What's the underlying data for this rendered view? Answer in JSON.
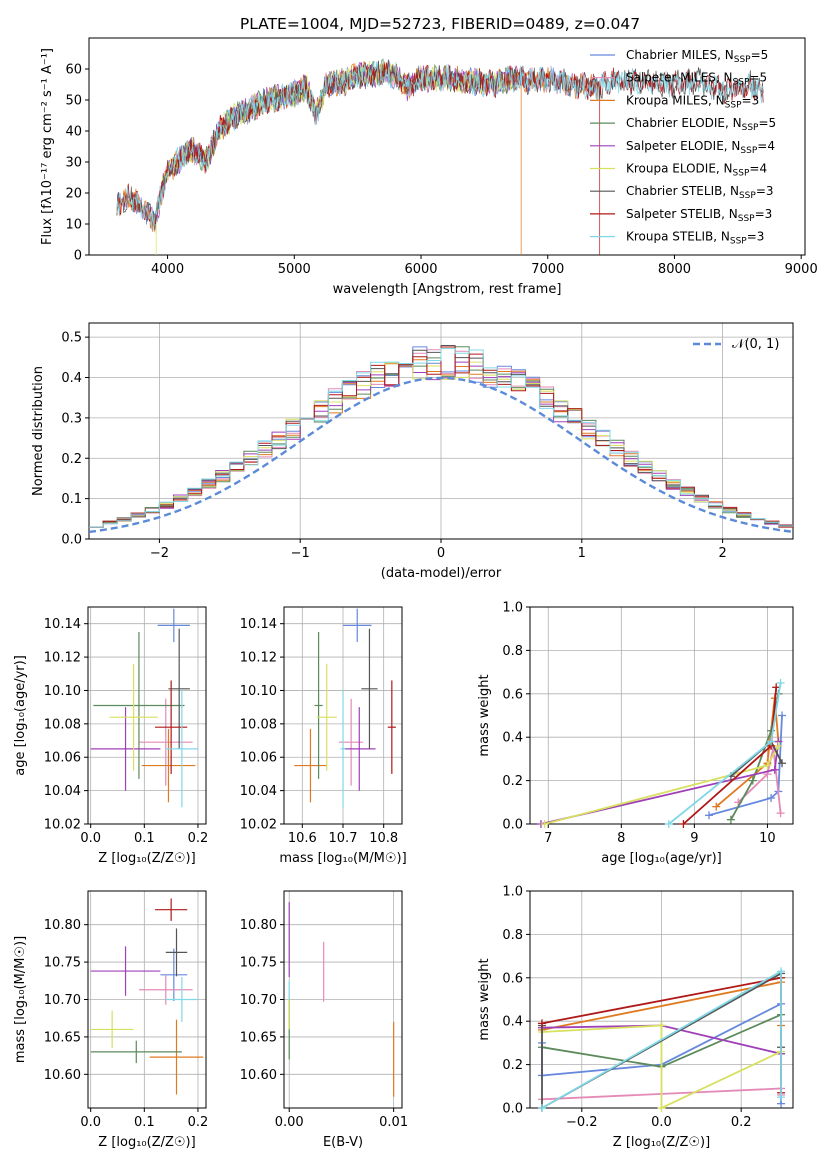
{
  "figure_title": "PLATE=1004, MJD=52723, FIBERID=0489, z=0.047",
  "colors": {
    "Chabrier MILES": "#6688dd",
    "Salpeter MILES": "#e48ab8",
    "Kroupa MILES": "#e07a20",
    "Chabrier ELODIE": "#5c8a5c",
    "Salpeter ELODIE": "#a040b8",
    "Kroupa ELODIE": "#d8e060",
    "Chabrier STELIB": "#555555",
    "Salpeter STELIB": "#b01818",
    "Kroupa STELIB": "#80d8e8",
    "normal_curve": "#5b8bd8"
  },
  "chart_data": [
    {
      "id": "spectrum",
      "type": "line",
      "title": "PLATE=1004, MJD=52723, FIBERID=0489, z=0.047",
      "xlabel": "wavelength [Angstrom, rest frame]",
      "ylabel": "Flux [fλ10⁻¹⁷ erg cm⁻² s⁻¹ A⁻¹]",
      "xlim": [
        3380,
        9030
      ],
      "ylim": [
        0,
        70
      ],
      "xticks": [
        4000,
        5000,
        6000,
        7000,
        8000,
        9000
      ],
      "yticks": [
        0,
        10,
        20,
        30,
        40,
        50,
        60
      ],
      "legend_position": "upper right",
      "legend": [
        {
          "label": "Chabrier MILES, N",
          "sub": "SSP",
          "suffix": "=5",
          "series": "Chabrier MILES"
        },
        {
          "label": "Salpeter MILES, N",
          "sub": "SSP",
          "suffix": "=5",
          "series": "Salpeter MILES"
        },
        {
          "label": "Kroupa MILES, N",
          "sub": "SSP",
          "suffix": "=3",
          "series": "Kroupa MILES"
        },
        {
          "label": "Chabrier ELODIE, N",
          "sub": "SSP",
          "suffix": "=5",
          "series": "Chabrier ELODIE"
        },
        {
          "label": "Salpeter ELODIE, N",
          "sub": "SSP",
          "suffix": "=4",
          "series": "Salpeter ELODIE"
        },
        {
          "label": "Kroupa ELODIE, N",
          "sub": "SSP",
          "suffix": "=4",
          "series": "Kroupa ELODIE"
        },
        {
          "label": "Chabrier STELIB, N",
          "sub": "SSP",
          "suffix": "=3",
          "series": "Chabrier STELIB"
        },
        {
          "label": "Salpeter STELIB, N",
          "sub": "SSP",
          "suffix": "=3",
          "series": "Salpeter STELIB"
        },
        {
          "label": "Kroupa STELIB, N",
          "sub": "SSP",
          "suffix": "=3",
          "series": "Kroupa STELIB"
        }
      ],
      "continuum": [
        [
          3600,
          16
        ],
        [
          3700,
          19
        ],
        [
          3800,
          15
        ],
        [
          3900,
          11
        ],
        [
          3950,
          20
        ],
        [
          4000,
          27
        ],
        [
          4100,
          31
        ],
        [
          4200,
          34
        ],
        [
          4300,
          30
        ],
        [
          4400,
          40
        ],
        [
          4500,
          44
        ],
        [
          4600,
          46
        ],
        [
          4700,
          48
        ],
        [
          4800,
          50
        ],
        [
          4900,
          51
        ],
        [
          5000,
          52
        ],
        [
          5100,
          54
        ],
        [
          5170,
          45
        ],
        [
          5250,
          55
        ],
        [
          5400,
          56
        ],
        [
          5500,
          58
        ],
        [
          5600,
          58
        ],
        [
          5700,
          59
        ],
        [
          5800,
          58
        ],
        [
          5890,
          54
        ],
        [
          6000,
          57
        ],
        [
          6200,
          57
        ],
        [
          6400,
          56
        ],
        [
          6563,
          55
        ],
        [
          6700,
          57
        ],
        [
          6900,
          56
        ],
        [
          7000,
          57
        ],
        [
          7200,
          55
        ],
        [
          7400,
          54
        ],
        [
          7500,
          56
        ],
        [
          7800,
          56
        ],
        [
          8000,
          55
        ],
        [
          8200,
          56
        ],
        [
          8400,
          53
        ],
        [
          8600,
          55
        ],
        [
          8700,
          53
        ]
      ],
      "drops": [
        {
          "series": "Kroupa ELODIE",
          "x": 3910
        },
        {
          "series": "Kroupa MILES",
          "x": 6790
        },
        {
          "series": "Salpeter STELIB",
          "x": 7410
        }
      ],
      "series_extent": {
        "MILES": [
          3600,
          7410
        ],
        "ELODIE": [
          3900,
          6790
        ],
        "STELIB": [
          3600,
          8700
        ]
      }
    },
    {
      "id": "residuals",
      "type": "step",
      "xlabel": "(data-model)/error",
      "ylabel": "Normed distribution",
      "xlim": [
        -2.5,
        2.5
      ],
      "ylim": [
        0,
        0.535
      ],
      "xticks": [
        -2,
        -1,
        0,
        1,
        2
      ],
      "yticks": [
        0.0,
        0.1,
        0.2,
        0.3,
        0.4,
        0.5
      ],
      "grid": true,
      "legend_position": "upper right",
      "legend_label": "𝒩(0, 1)",
      "bin_width": 0.1
    },
    {
      "id": "age_vs_Z",
      "type": "errorbar",
      "xlabel": "Z [log₁₀(Z/Z☉)]",
      "ylabel": "age  [log₁₀(age/yr)]",
      "xlim": [
        -0.005,
        0.215
      ],
      "ylim": [
        10.02,
        10.15
      ],
      "xticks": [
        0.0,
        0.1,
        0.2
      ],
      "yticks": [
        10.02,
        10.04,
        10.06,
        10.08,
        10.1,
        10.12,
        10.14
      ],
      "grid": true,
      "points": [
        {
          "series": "Chabrier MILES",
          "x": 0.155,
          "xerr": 0.03,
          "y": 10.139,
          "yerr": 0.01
        },
        {
          "series": "Salpeter MILES",
          "x": 0.14,
          "xerr": 0.05,
          "y": 10.069,
          "yerr": 0.026
        },
        {
          "series": "Kroupa MILES",
          "x": 0.145,
          "xerr": 0.05,
          "y": 10.055,
          "yerr": 0.022
        },
        {
          "series": "Chabrier ELODIE",
          "x": 0.09,
          "xerr": 0.085,
          "y": 10.091,
          "yerr": 0.044
        },
        {
          "series": "Salpeter ELODIE",
          "x": 0.065,
          "xerr": 0.065,
          "y": 10.065,
          "yerr": 0.025
        },
        {
          "series": "Kroupa ELODIE",
          "x": 0.08,
          "xerr": 0.045,
          "y": 10.084,
          "yerr": 0.032
        },
        {
          "series": "Chabrier STELIB",
          "x": 0.165,
          "xerr": 0.02,
          "y": 10.101,
          "yerr": 0.036
        },
        {
          "series": "Salpeter STELIB",
          "x": 0.15,
          "xerr": 0.03,
          "y": 10.078,
          "yerr": 0.028
        },
        {
          "series": "Kroupa STELIB",
          "x": 0.17,
          "xerr": 0.03,
          "y": 10.065,
          "yerr": 0.035
        }
      ]
    },
    {
      "id": "age_vs_mass",
      "type": "errorbar",
      "xlabel": "mass [log₁₀(M/M☉)]",
      "ylabel": "",
      "xlim": [
        10.555,
        10.845
      ],
      "ylim": [
        10.02,
        10.15
      ],
      "xticks": [
        10.6,
        10.7,
        10.8
      ],
      "yticks": [
        10.02,
        10.04,
        10.06,
        10.08,
        10.1,
        10.12,
        10.14
      ],
      "grid": true,
      "points": [
        {
          "series": "Chabrier MILES",
          "x": 10.735,
          "xerr": 0.035,
          "y": 10.139,
          "yerr": 0.01
        },
        {
          "series": "Salpeter MILES",
          "x": 10.72,
          "xerr": 0.03,
          "y": 10.069,
          "yerr": 0.026
        },
        {
          "series": "Kroupa MILES",
          "x": 10.62,
          "xerr": 0.04,
          "y": 10.055,
          "yerr": 0.022
        },
        {
          "series": "Chabrier ELODIE",
          "x": 10.64,
          "xerr": 0.01,
          "y": 10.091,
          "yerr": 0.044
        },
        {
          "series": "Salpeter ELODIE",
          "x": 10.74,
          "xerr": 0.04,
          "y": 10.065,
          "yerr": 0.025
        },
        {
          "series": "Kroupa ELODIE",
          "x": 10.66,
          "xerr": 0.025,
          "y": 10.084,
          "yerr": 0.032
        },
        {
          "series": "Chabrier STELIB",
          "x": 10.765,
          "xerr": 0.02,
          "y": 10.101,
          "yerr": 0.036
        },
        {
          "series": "Salpeter STELIB",
          "x": 10.82,
          "xerr": 0.01,
          "y": 10.078,
          "yerr": 0.028
        },
        {
          "series": "Kroupa STELIB",
          "x": 10.7,
          "xerr": 0.006,
          "y": 10.065,
          "yerr": 0.035
        }
      ]
    },
    {
      "id": "mass_weight_vs_age",
      "type": "line",
      "xlabel": "age  [log₁₀(age/yr)]",
      "ylabel": "mass weight",
      "xlim": [
        6.75,
        10.35
      ],
      "ylim": [
        0,
        1.0
      ],
      "xticks": [
        7,
        8,
        9,
        10
      ],
      "yticks": [
        0.0,
        0.2,
        0.4,
        0.6,
        0.8,
        1.0
      ],
      "grid": true,
      "series": [
        {
          "name": "Chabrier MILES",
          "x": [
            9.2,
            10.05,
            10.15,
            10.2
          ],
          "y": [
            0.04,
            0.12,
            0.15,
            0.5
          ]
        },
        {
          "name": "Salpeter MILES",
          "x": [
            9.6,
            10.0,
            10.08,
            10.18
          ],
          "y": [
            0.1,
            0.23,
            0.35,
            0.05
          ]
        },
        {
          "name": "Kroupa MILES",
          "x": [
            9.3,
            10.0,
            10.1,
            10.15
          ],
          "y": [
            0.08,
            0.28,
            0.58,
            0.38
          ]
        },
        {
          "name": "Chabrier ELODIE",
          "x": [
            9.5,
            9.8,
            10.05,
            10.15
          ],
          "y": [
            0.02,
            0.2,
            0.43,
            0.6
          ]
        },
        {
          "name": "Salpeter ELODIE",
          "x": [
            6.9,
            10.1,
            10.15
          ],
          "y": [
            0.0,
            0.25,
            0.38
          ]
        },
        {
          "name": "Kroupa ELODIE",
          "x": [
            6.95,
            10.0,
            10.15
          ],
          "y": [
            0.0,
            0.27,
            0.36
          ]
        },
        {
          "name": "Chabrier STELIB",
          "x": [
            9.5,
            10.05,
            10.2
          ],
          "y": [
            0.22,
            0.38,
            0.28
          ]
        },
        {
          "name": "Salpeter STELIB",
          "x": [
            8.85,
            10.05,
            10.12
          ],
          "y": [
            0.0,
            0.36,
            0.63
          ]
        },
        {
          "name": "Kroupa STELIB",
          "x": [
            8.65,
            10.05,
            10.18
          ],
          "y": [
            0.0,
            0.38,
            0.65
          ]
        }
      ]
    },
    {
      "id": "mass_vs_Z",
      "type": "errorbar",
      "xlabel": "Z [log₁₀(Z/Z☉)]",
      "ylabel": "mass [log₁₀(M/M☉)]",
      "xlim": [
        -0.005,
        0.215
      ],
      "ylim": [
        10.555,
        10.845
      ],
      "xticks": [
        0.0,
        0.1,
        0.2
      ],
      "yticks": [
        10.6,
        10.65,
        10.7,
        10.75,
        10.8
      ],
      "grid": true,
      "points": [
        {
          "series": "Chabrier MILES",
          "x": 0.155,
          "xerr": 0.025,
          "y": 10.733,
          "yerr": 0.035
        },
        {
          "series": "Salpeter MILES",
          "x": 0.14,
          "xerr": 0.05,
          "y": 10.713,
          "yerr": 0.02
        },
        {
          "series": "Kroupa MILES",
          "x": 0.16,
          "xerr": 0.05,
          "y": 10.623,
          "yerr": 0.05
        },
        {
          "series": "Chabrier ELODIE",
          "x": 0.085,
          "xerr": 0.085,
          "y": 10.63,
          "yerr": 0.015
        },
        {
          "series": "Salpeter ELODIE",
          "x": 0.065,
          "xerr": 0.065,
          "y": 10.738,
          "yerr": 0.033
        },
        {
          "series": "Kroupa ELODIE",
          "x": 0.04,
          "xerr": 0.04,
          "y": 10.66,
          "yerr": 0.025
        },
        {
          "series": "Chabrier STELIB",
          "x": 0.16,
          "xerr": 0.02,
          "y": 10.763,
          "yerr": 0.032
        },
        {
          "series": "Salpeter STELIB",
          "x": 0.15,
          "xerr": 0.03,
          "y": 10.82,
          "yerr": 0.015
        },
        {
          "series": "Kroupa STELIB",
          "x": 0.17,
          "xerr": 0.03,
          "y": 10.7,
          "yerr": 0.03
        }
      ]
    },
    {
      "id": "mass_vs_ebv",
      "type": "errorbar",
      "xlabel": "E(B-V)",
      "ylabel": "",
      "xlim": [
        -0.0005,
        0.0108
      ],
      "ylim": [
        10.555,
        10.845
      ],
      "xticks": [
        0.0,
        0.01
      ],
      "yticks": [
        10.6,
        10.65,
        10.7,
        10.75,
        10.8
      ],
      "grid": true,
      "points": [
        {
          "series": "Salpeter ELODIE",
          "x": 0.0,
          "xerr": 0,
          "y": 10.78,
          "yerr": 0.05
        },
        {
          "series": "Kroupa STELIB",
          "x": 0.0,
          "xerr": 0,
          "y": 10.69,
          "yerr": 0.035
        },
        {
          "series": "Chabrier ELODIE",
          "x": 0.0,
          "xerr": 0,
          "y": 10.66,
          "yerr": 0.04
        },
        {
          "series": "Kroupa ELODIE",
          "x": 0.0,
          "xerr": 0,
          "y": 10.68,
          "yerr": 0.02
        },
        {
          "series": "Salpeter MILES",
          "x": 0.0033,
          "xerr": 0,
          "y": 10.737,
          "yerr": 0.04
        },
        {
          "series": "Kroupa MILES",
          "x": 0.01,
          "xerr": 0,
          "y": 10.62,
          "yerr": 0.05
        }
      ]
    },
    {
      "id": "mass_weight_vs_Z",
      "type": "line",
      "xlabel": "Z [log₁₀(Z/Z☉)]",
      "ylabel": "mass weight",
      "xlim": [
        -0.33,
        0.33
      ],
      "ylim": [
        0,
        1.0
      ],
      "xticks": [
        -0.2,
        0.0,
        0.2
      ],
      "yticks": [
        0.0,
        0.2,
        0.4,
        0.6,
        0.8,
        1.0
      ],
      "grid": true,
      "series": [
        {
          "name": "Chabrier MILES",
          "x": [
            -0.3,
            -0.3,
            0.0,
            0.3,
            0.3
          ],
          "y": [
            0.3,
            0.15,
            0.2,
            0.48,
            0.02
          ]
        },
        {
          "name": "Salpeter MILES",
          "x": [
            -0.3,
            0.3,
            0.3
          ],
          "y": [
            0.04,
            0.09,
            0.06
          ]
        },
        {
          "name": "Kroupa MILES",
          "x": [
            -0.3,
            0.3,
            0.3
          ],
          "y": [
            0.36,
            0.58,
            0.38
          ]
        },
        {
          "name": "Chabrier ELODIE",
          "x": [
            -0.3,
            0.0,
            0.3,
            0.3
          ],
          "y": [
            0.28,
            0.19,
            0.43,
            0.25
          ]
        },
        {
          "name": "Salpeter ELODIE",
          "x": [
            -0.3,
            0.0,
            0.3,
            0.3
          ],
          "y": [
            0.37,
            0.38,
            0.25,
            0.6
          ]
        },
        {
          "name": "Kroupa ELODIE",
          "x": [
            -0.3,
            0.0,
            0.0,
            0.3,
            0.3
          ],
          "y": [
            0.35,
            0.38,
            0.0,
            0.26,
            0.6
          ]
        },
        {
          "name": "Chabrier STELIB",
          "x": [
            -0.3,
            -0.3,
            0.3,
            0.3
          ],
          "y": [
            0.38,
            0.0,
            0.62,
            0.28
          ]
        },
        {
          "name": "Salpeter STELIB",
          "x": [
            -0.3,
            0.3,
            0.3
          ],
          "y": [
            0.39,
            0.6,
            0.07
          ]
        },
        {
          "name": "Kroupa STELIB",
          "x": [
            -0.3,
            0.3,
            0.3
          ],
          "y": [
            0.0,
            0.63,
            0.05
          ]
        }
      ]
    }
  ]
}
